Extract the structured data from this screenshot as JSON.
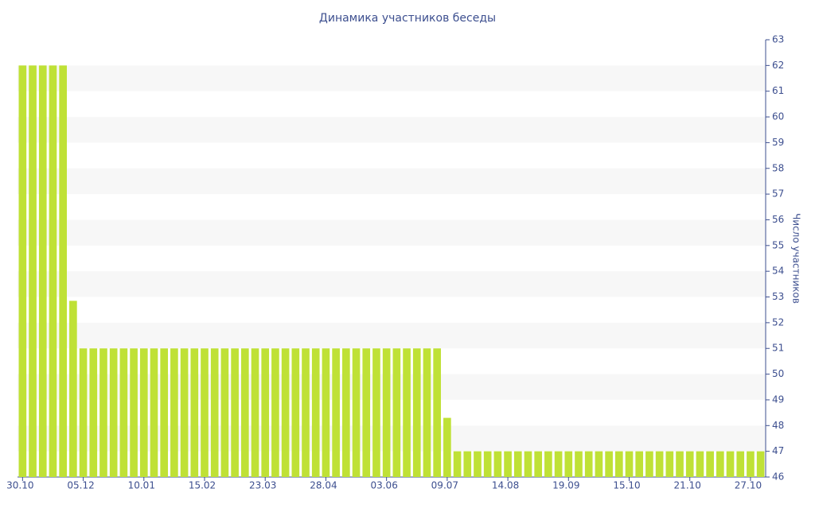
{
  "chart_data": {
    "type": "bar",
    "title": "Динамика участников беседы",
    "y_axis_label": "Число участников",
    "color": "#bfe136",
    "y_axis_side": "right",
    "grid": "bands",
    "categories": [
      "30.10",
      null,
      null,
      null,
      null,
      null,
      "05.12",
      null,
      null,
      null,
      null,
      null,
      "10.01",
      null,
      null,
      null,
      null,
      null,
      "15.02",
      null,
      null,
      null,
      null,
      null,
      "23.03",
      null,
      null,
      null,
      null,
      null,
      "28.04",
      null,
      null,
      null,
      null,
      null,
      "03.06",
      null,
      null,
      null,
      null,
      null,
      "09.07",
      null,
      null,
      null,
      null,
      null,
      "14.08",
      null,
      null,
      null,
      null,
      null,
      "19.09",
      null,
      null,
      null,
      null,
      null,
      "15.10",
      null,
      null,
      null,
      null,
      null,
      "21.10",
      null,
      null,
      null,
      null,
      null,
      "27.10",
      null
    ],
    "values": [
      62,
      62,
      62,
      62,
      62,
      52.85,
      51,
      51,
      51,
      51,
      51,
      51,
      51,
      51,
      51,
      51,
      51,
      51,
      51,
      51,
      51,
      51,
      51,
      51,
      51,
      51,
      51,
      51,
      51,
      51,
      51,
      51,
      51,
      51,
      51,
      51,
      51,
      51,
      51,
      51,
      51,
      51,
      48.3,
      47,
      47,
      47,
      47,
      47,
      47,
      47,
      47,
      47,
      47,
      47,
      47,
      47,
      47,
      47,
      47,
      47,
      47,
      47,
      47,
      47,
      47,
      47,
      47,
      47,
      47,
      47,
      47,
      47,
      47,
      47
    ],
    "ylim": [
      46,
      63
    ],
    "yticks": [
      46,
      47,
      48,
      49,
      50,
      51,
      52,
      53,
      54,
      55,
      56,
      57,
      58,
      59,
      60,
      61,
      62,
      63
    ]
  }
}
